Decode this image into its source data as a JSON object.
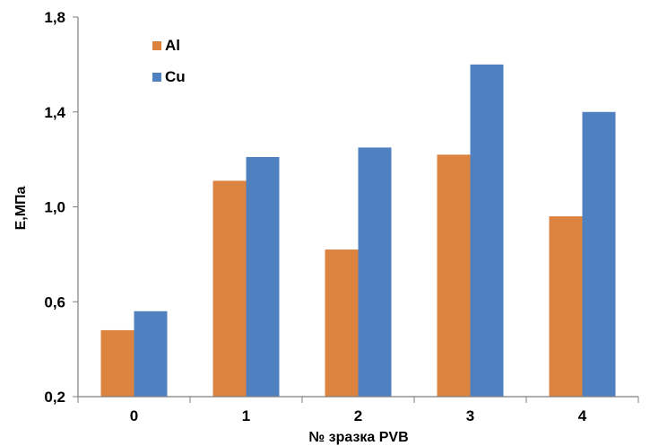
{
  "chart_data": {
    "type": "bar",
    "title": "",
    "xlabel": "№ зразка PVB",
    "ylabel": "E,МПа",
    "categories": [
      "0",
      "1",
      "2",
      "3",
      "4"
    ],
    "series": [
      {
        "name": "Al",
        "color": "#DC843F",
        "values": [
          0.48,
          1.11,
          0.82,
          1.22,
          0.96
        ]
      },
      {
        "name": "Cu",
        "color": "#4F80BF",
        "values": [
          0.56,
          1.21,
          1.25,
          1.6,
          1.4
        ]
      }
    ],
    "ylim": [
      0.2,
      1.8
    ],
    "yticks": [
      0.2,
      0.6,
      1.0,
      1.4,
      1.8
    ],
    "ytick_labels": [
      "0,2",
      "0,6",
      "1,0",
      "1,4",
      "1,8"
    ],
    "grid": false,
    "legend_position": "top-left"
  }
}
